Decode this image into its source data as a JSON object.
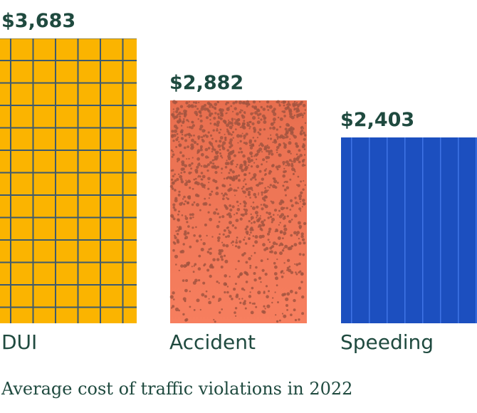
{
  "chart_data": {
    "type": "bar",
    "categories": [
      "DUI",
      "Accident",
      "Speeding"
    ],
    "values": [
      3683,
      2882,
      2403
    ],
    "value_labels": [
      "$3,683",
      "$2,882",
      "$2,403"
    ],
    "colors": [
      "#fbb400",
      "#f47c5e",
      "#1c4fbf"
    ],
    "patterns": [
      "grid",
      "speckle",
      "vertical-lines"
    ],
    "caption": "Average cost of traffic violations in 2022",
    "ylim": [
      0,
      3683
    ],
    "grid": false
  }
}
